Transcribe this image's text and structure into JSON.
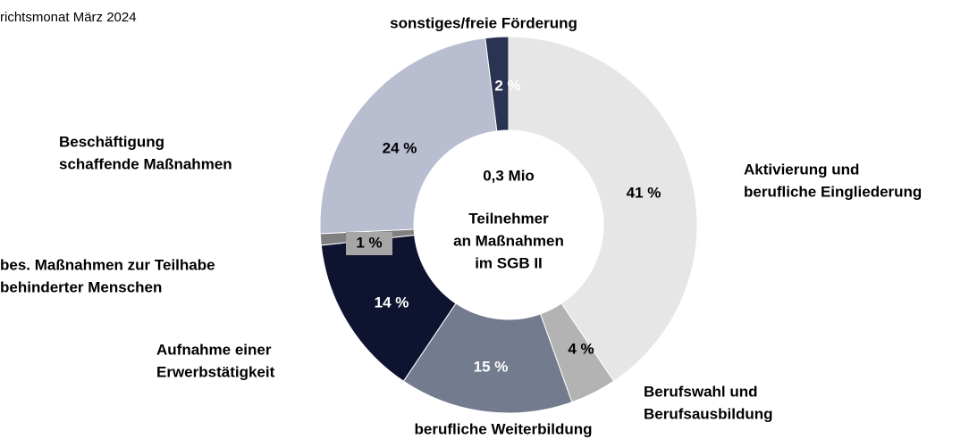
{
  "chart_data": {
    "type": "donut",
    "subtitle": "richtsmonat März 2024",
    "center_lines": [
      "0,3 Mio",
      "Teilnehmer",
      "an Maßnahmen",
      "im SGB II"
    ],
    "categories": [
      [
        "Aktivierung und",
        "berufliche Eingliederung"
      ],
      [
        "Berufswahl und",
        "Berufsausbildung"
      ],
      [
        "berufliche Weiterbildung"
      ],
      [
        "Aufnahme einer",
        "Erwerbstätigkeit"
      ],
      [
        "bes. Maßnahmen zur Teilhabe",
        "behinderter Menschen"
      ],
      [
        "Beschäftigung",
        "schaffende Maßnahmen"
      ],
      [
        "sonstiges/freie Förderung"
      ]
    ],
    "values": [
      41,
      4,
      15,
      14,
      1,
      24,
      2
    ],
    "value_labels": [
      "41 %",
      "4 %",
      "15 %",
      "14 %",
      "1 %",
      "24 %",
      "2 %"
    ],
    "colors": [
      "#e6e6e6",
      "#b3b3b3",
      "#737b8f",
      "#0e1430",
      "#808080",
      "#b8bdd0",
      "#2a3350"
    ]
  }
}
